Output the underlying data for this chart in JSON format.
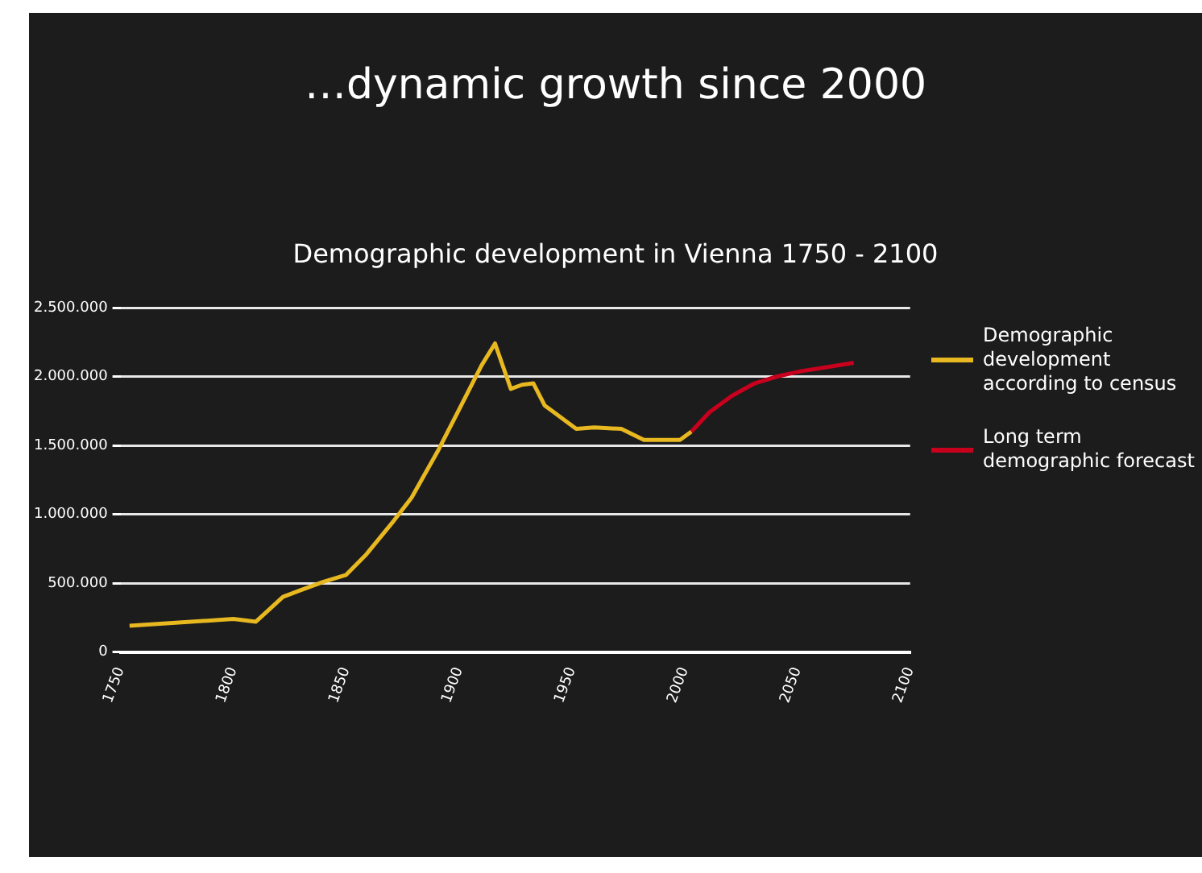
{
  "chart_data": {
    "type": "line",
    "title": "…dynamic growth since 2000",
    "subtitle": "Demographic development in Vienna  1750 - 2100",
    "xlim": [
      1750,
      2100
    ],
    "xticks": [
      1750,
      1800,
      1850,
      1900,
      1950,
      2000,
      2050,
      2100
    ],
    "ylim": [
      0,
      2500000
    ],
    "yticks": [
      {
        "value": 0,
        "label": "0"
      },
      {
        "value": 500000,
        "label": "500.000"
      },
      {
        "value": 1000000,
        "label": "1.000.000"
      },
      {
        "value": 1500000,
        "label": "1.500.000"
      },
      {
        "value": 2000000,
        "label": "2.000.000"
      },
      {
        "value": 2500000,
        "label": "2.500.000"
      }
    ],
    "grid": "y",
    "legend": "right",
    "marker": "none",
    "line_style": "solid",
    "series": [
      {
        "name": "Demographic development according to census",
        "color": "#e8b820",
        "x": [
          1754,
          1800,
          1810,
          1822,
          1830,
          1840,
          1850,
          1859,
          1871,
          1879,
          1891,
          1901,
          1910,
          1916,
          1923,
          1928,
          1933,
          1938,
          1943,
          1952,
          1960,
          1972,
          1982,
          1998,
          2003
        ],
        "values": [
          190000,
          240000,
          220000,
          400000,
          450000,
          510000,
          560000,
          710000,
          950000,
          1120000,
          1470000,
          1790000,
          2080000,
          2240000,
          1910000,
          1940000,
          1950000,
          1790000,
          1730000,
          1620000,
          1630000,
          1620000,
          1540000,
          1540000,
          1600000
        ]
      },
      {
        "name": "Long term demographic forecast",
        "color": "#c8001e",
        "x": [
          2003,
          2011,
          2021,
          2031,
          2041,
          2052,
          2064,
          2075
        ],
        "values": [
          1600000,
          1740000,
          1860000,
          1950000,
          2000000,
          2040000,
          2070000,
          2100000
        ]
      }
    ]
  }
}
